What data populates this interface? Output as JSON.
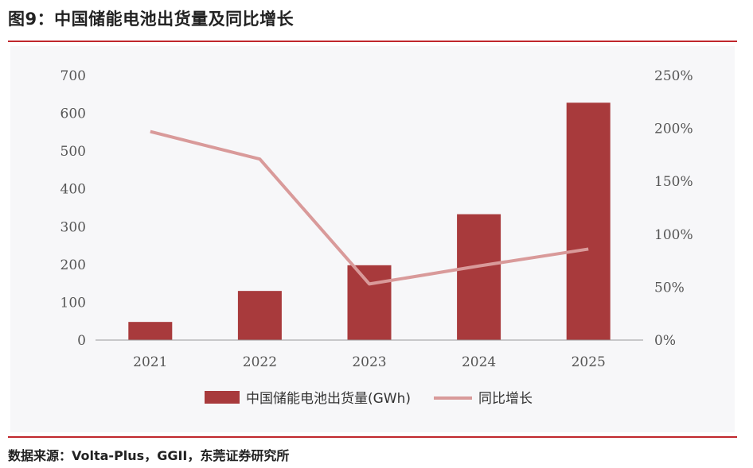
{
  "figure": {
    "title": "图9：中国储能电池出货量及同比增长",
    "source": "数据来源：Volta-Plus，GGII，东莞证券研究所"
  },
  "colors": {
    "bar": "#a83a3c",
    "line": "#d99a9a",
    "rule": "#c0272d",
    "axis": "#9a9a9a"
  },
  "chart_data": {
    "type": "bar",
    "categories": [
      "2021",
      "2022",
      "2023",
      "2024",
      "2025"
    ],
    "series": [
      {
        "name": "中国储能电池出货量(GWh)",
        "type": "bar",
        "axis": "left",
        "values": [
          48,
          130,
          198,
          333,
          628
        ]
      },
      {
        "name": "同比增长",
        "type": "line",
        "axis": "right",
        "values": [
          1.97,
          1.71,
          0.53,
          0.7,
          0.86
        ]
      }
    ],
    "ylim": [
      0,
      700
    ],
    "y_ticks": [
      "0",
      "100",
      "200",
      "300",
      "400",
      "500",
      "600",
      "700"
    ],
    "y2lim": [
      0,
      2.5
    ],
    "y2_ticks": [
      "0%",
      "50%",
      "100%",
      "150%",
      "200%",
      "250%"
    ],
    "grid": false,
    "legend_position": "bottom"
  }
}
